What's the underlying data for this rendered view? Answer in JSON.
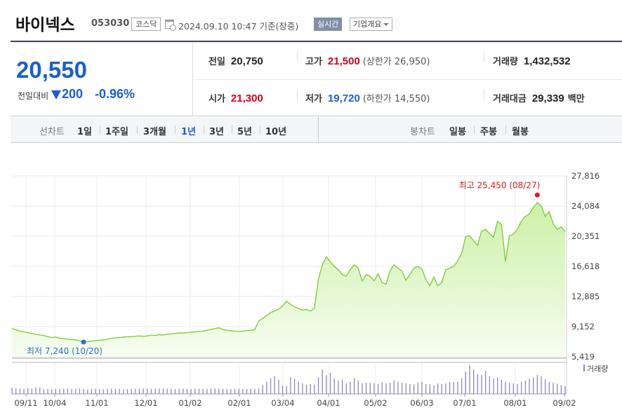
{
  "header": {
    "name": "바이넥스",
    "code": "053030",
    "market": "코스닥",
    "timestamp": "2024.09.10 10:47 기준(장중)",
    "realtime": "실시간",
    "company_info": "기업개요"
  },
  "summary": {
    "price": "20,550",
    "change_label": "전일대비",
    "change": "200",
    "change_pct": "-0.96%",
    "prev_close_label": "전일",
    "prev_close": "20,750",
    "high_label": "고가",
    "high": "21,500",
    "upper_limit": "(상한가 26,950)",
    "volume_label": "거래량",
    "volume": "1,432,532",
    "open_label": "시가",
    "open": "21,300",
    "low_label": "저가",
    "low": "19,720",
    "lower_limit": "(하한가 14,550)",
    "amount_label": "거래대금",
    "amount": "29,339",
    "amount_unit": "백만"
  },
  "tabs": {
    "line_label": "선차트",
    "line_tabs": [
      "1일",
      "1주일",
      "3개월",
      "1년",
      "3년",
      "5년",
      "10년"
    ],
    "active_tab": "1년",
    "candle_label": "봉차트",
    "candle_tabs": [
      "일봉",
      "주봉",
      "월봉"
    ]
  },
  "colors": {
    "line": "#7fcf3a",
    "area_top": "#cdf0a8",
    "area_bottom": "#f6fdf0",
    "volume": "#8e86c2",
    "max_dot": "#e01a1a",
    "min_dot": "#2c6fd0"
  },
  "chart_data": {
    "type": "area",
    "y_ticks": [
      27816,
      24084,
      20351,
      16618,
      12885,
      9152,
      5419
    ],
    "y_tick_labels": [
      "27,816",
      "24,084",
      "20,351",
      "16,618",
      "12,885",
      "9,152",
      "5,419"
    ],
    "ylim": [
      5419,
      27816
    ],
    "x_tick_labels": [
      "09/11",
      "10/04",
      "11/01",
      "12/01",
      "01/02",
      "02/01",
      "03/04",
      "04/01",
      "05/02",
      "06/03",
      "07/01",
      "08/01",
      "09/02"
    ],
    "max_label": "최고 25,450 (08/27)",
    "min_label": "최저 7,240 (10/20)",
    "max_value": 25450,
    "min_value": 7240,
    "volume_legend": "거래량",
    "prices": [
      8900,
      8750,
      8600,
      8500,
      8400,
      8300,
      8200,
      8100,
      8050,
      7900,
      7800,
      7850,
      7700,
      7650,
      7600,
      7550,
      7500,
      7400,
      7240,
      7300,
      7350,
      7400,
      7450,
      7500,
      7600,
      7700,
      7750,
      7800,
      7850,
      7900,
      7900,
      7950,
      8000,
      7950,
      8000,
      8100,
      8050,
      8150,
      8100,
      8200,
      8250,
      8300,
      8350,
      8350,
      8400,
      8450,
      8500,
      8550,
      8600,
      8700,
      8800,
      8900,
      9000,
      8800,
      8700,
      8650,
      8600,
      8550,
      8600,
      8650,
      8700,
      8750,
      9800,
      10200,
      10500,
      10900,
      11100,
      11300,
      11700,
      12300,
      11900,
      11600,
      11400,
      11200,
      11300,
      11100,
      11400,
      15000,
      16800,
      17800,
      17200,
      16600,
      16200,
      15600,
      15400,
      16200,
      16800,
      16400,
      14800,
      15600,
      15400,
      14800,
      15700,
      14600,
      14400,
      16100,
      16800,
      16400,
      16000,
      14900,
      15600,
      16400,
      16600,
      16300,
      15000,
      14200,
      15300,
      14200,
      14600,
      16200,
      16400,
      16600,
      17300,
      18200,
      20300,
      20400,
      19800,
      19200,
      21000,
      21200,
      20700,
      20200,
      22200,
      21800,
      17200,
      20400,
      20600,
      21200,
      22200,
      22800,
      23100,
      23900,
      24500,
      24100,
      22800,
      23400,
      21900,
      21200,
      21500,
      20900
    ],
    "volumes": [
      55,
      50,
      48,
      45,
      52,
      47,
      60,
      58,
      42,
      44,
      40,
      45,
      43,
      47,
      50,
      46,
      44,
      49,
      45,
      41,
      45,
      47,
      43,
      42,
      44,
      48,
      46,
      45,
      42,
      43,
      44,
      45,
      47,
      49,
      46,
      45,
      46,
      48,
      47,
      45,
      44,
      43,
      46,
      47,
      45,
      44,
      48,
      47,
      46,
      45,
      47,
      49,
      48,
      45,
      44,
      43,
      44,
      46,
      45,
      44,
      46,
      45,
      48,
      80,
      110,
      140,
      160,
      130,
      75,
      70,
      150,
      140,
      110,
      95,
      85,
      90,
      85,
      150,
      220,
      170,
      190,
      140,
      120,
      130,
      95,
      110,
      140,
      120,
      95,
      100,
      100,
      95,
      90,
      105,
      95,
      100,
      120,
      110,
      100,
      95,
      90,
      85,
      100,
      110,
      90,
      85,
      80,
      95,
      90,
      95,
      110,
      105,
      110,
      140,
      200,
      260,
      220,
      180,
      170,
      210,
      160,
      140,
      150,
      130,
      110,
      100,
      95,
      90,
      110,
      120,
      140,
      150,
      170,
      160,
      130,
      110,
      100,
      90,
      80,
      70
    ]
  }
}
